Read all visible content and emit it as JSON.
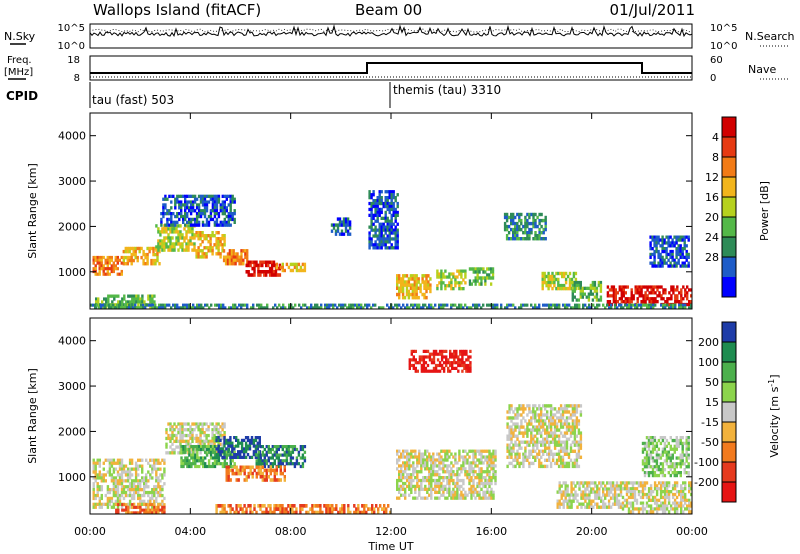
{
  "header": {
    "station": "Wallops Island (fitACF)",
    "beam": "Beam 00",
    "date": "01/Jul/2011"
  },
  "left_labels": {
    "nsky": "N.Sky",
    "freq_line1": "Freq.",
    "freq_line2": "[MHz]",
    "cpid": "CPID"
  },
  "right_labels": {
    "nsearch": "N.Search",
    "nave": "Nave"
  },
  "noise_panel": {
    "left_ticks": [
      "10^5",
      "10^0"
    ],
    "right_ticks": [
      "10^5",
      "10^0"
    ]
  },
  "freq_panel": {
    "left_ticks": [
      "18",
      "8"
    ],
    "right_ticks": [
      "60",
      "0"
    ]
  },
  "cpid_panel": {
    "segments": [
      {
        "label": "tau (fast) 503",
        "start_hour": 0
      },
      {
        "label": "themis (tau) 3310",
        "start_hour": 11.9
      }
    ]
  },
  "chart_data": [
    {
      "type": "heatmap",
      "title": "",
      "ylabel": "Slant Range [km]",
      "xlabel": "Time UT",
      "xlim": [
        0,
        24
      ],
      "ylim": [
        180,
        4500
      ],
      "x_ticks": [
        "00:00",
        "04:00",
        "08:00",
        "12:00",
        "16:00",
        "20:00",
        "00:00"
      ],
      "y_ticks": [
        1000,
        2000,
        3000,
        4000
      ],
      "colorbar": {
        "label": "Power [dB]",
        "ticks": [
          4,
          8,
          12,
          16,
          20,
          24,
          28
        ],
        "colors": [
          "#0000ff",
          "#1e5cc8",
          "#2e8b57",
          "#54b848",
          "#b6d11e",
          "#f2b51c",
          "#f27b16",
          "#e63a12",
          "#d10000"
        ]
      },
      "echo_regions": [
        {
          "x0": 0.1,
          "x1": 1.3,
          "y0": 920,
          "y1": 1350,
          "level": 6
        },
        {
          "x0": 1.3,
          "x1": 2.8,
          "y0": 1150,
          "y1": 1550,
          "level": 5
        },
        {
          "x0": 2.6,
          "x1": 4.2,
          "y0": 1450,
          "y1": 2050,
          "level": 4
        },
        {
          "x0": 4.2,
          "x1": 5.4,
          "y0": 1300,
          "y1": 1900,
          "level": 5
        },
        {
          "x0": 5.3,
          "x1": 6.3,
          "y0": 1150,
          "y1": 1500,
          "level": 6
        },
        {
          "x0": 6.2,
          "x1": 7.6,
          "y0": 900,
          "y1": 1250,
          "level": 8
        },
        {
          "x0": 7.4,
          "x1": 8.6,
          "y0": 1000,
          "y1": 1200,
          "level": 5
        },
        {
          "x0": 0.2,
          "x1": 2.6,
          "y0": 180,
          "y1": 500,
          "level": 3
        },
        {
          "x0": 2.8,
          "x1": 5.8,
          "y0": 2000,
          "y1": 2700,
          "level": 1
        },
        {
          "x0": 9.6,
          "x1": 10.4,
          "y0": 1800,
          "y1": 2200,
          "level": 1
        },
        {
          "x0": 11.1,
          "x1": 12.3,
          "y0": 1500,
          "y1": 2800,
          "level": 1
        },
        {
          "x0": 12.2,
          "x1": 13.6,
          "y0": 400,
          "y1": 950,
          "level": 5
        },
        {
          "x0": 13.8,
          "x1": 15.0,
          "y0": 600,
          "y1": 1050,
          "level": 4
        },
        {
          "x0": 15.1,
          "x1": 16.1,
          "y0": 700,
          "y1": 1100,
          "level": 3
        },
        {
          "x0": 16.5,
          "x1": 18.2,
          "y0": 1700,
          "y1": 2300,
          "level": 2
        },
        {
          "x0": 18.0,
          "x1": 19.4,
          "y0": 600,
          "y1": 1000,
          "level": 4
        },
        {
          "x0": 19.2,
          "x1": 20.4,
          "y0": 350,
          "y1": 800,
          "level": 3
        },
        {
          "x0": 20.6,
          "x1": 24.0,
          "y0": 250,
          "y1": 700,
          "level": 8
        },
        {
          "x0": 22.3,
          "x1": 23.9,
          "y0": 1100,
          "y1": 1800,
          "level": 1
        },
        {
          "x0": 0.0,
          "x1": 24.0,
          "y0": 180,
          "y1": 300,
          "level": 2
        }
      ]
    },
    {
      "type": "heatmap",
      "title": "",
      "ylabel": "Slant Range [km]",
      "xlabel": "Time UT",
      "xlim": [
        0,
        24
      ],
      "ylim": [
        180,
        4500
      ],
      "x_ticks": [
        "00:00",
        "04:00",
        "08:00",
        "12:00",
        "16:00",
        "20:00",
        "00:00"
      ],
      "y_ticks": [
        1000,
        2000,
        3000,
        4000
      ],
      "colorbar": {
        "label": "Velocity [m s^-1]",
        "ticks": [
          200,
          100,
          50,
          15,
          -15,
          -50,
          -100,
          -200
        ],
        "colors": [
          "#1e3ca8",
          "#1e8c50",
          "#4cb04c",
          "#8cd44c",
          "#c8c8c8",
          "#f2b23c",
          "#f27a1e",
          "#e63a1e",
          "#e61414"
        ]
      },
      "echo_regions": [
        {
          "x0": 0.1,
          "x1": 3.0,
          "y0": 300,
          "y1": 1400,
          "level": 4
        },
        {
          "x0": 3.0,
          "x1": 5.4,
          "y0": 1500,
          "y1": 2200,
          "level": 4
        },
        {
          "x0": 3.6,
          "x1": 5.8,
          "y0": 1200,
          "y1": 1700,
          "level": 2
        },
        {
          "x0": 5.0,
          "x1": 6.8,
          "y0": 1400,
          "y1": 1900,
          "level": 0
        },
        {
          "x0": 6.6,
          "x1": 8.6,
          "y0": 1200,
          "y1": 1700,
          "level": 1
        },
        {
          "x0": 5.4,
          "x1": 7.8,
          "y0": 900,
          "y1": 1250,
          "level": 6
        },
        {
          "x0": 1.0,
          "x1": 3.0,
          "y0": 180,
          "y1": 420,
          "level": 6
        },
        {
          "x0": 5.0,
          "x1": 12.0,
          "y0": 180,
          "y1": 400,
          "level": 6
        },
        {
          "x0": 12.2,
          "x1": 16.2,
          "y0": 500,
          "y1": 1600,
          "level": 4
        },
        {
          "x0": 12.7,
          "x1": 15.2,
          "y0": 3300,
          "y1": 3800,
          "level": 8
        },
        {
          "x0": 16.6,
          "x1": 19.6,
          "y0": 1200,
          "y1": 2600,
          "level": 4
        },
        {
          "x0": 18.6,
          "x1": 21.2,
          "y0": 300,
          "y1": 900,
          "level": 4
        },
        {
          "x0": 21.2,
          "x1": 24.0,
          "y0": 200,
          "y1": 900,
          "level": 4
        },
        {
          "x0": 22.0,
          "x1": 23.9,
          "y0": 1000,
          "y1": 1900,
          "level": 3
        }
      ]
    }
  ]
}
